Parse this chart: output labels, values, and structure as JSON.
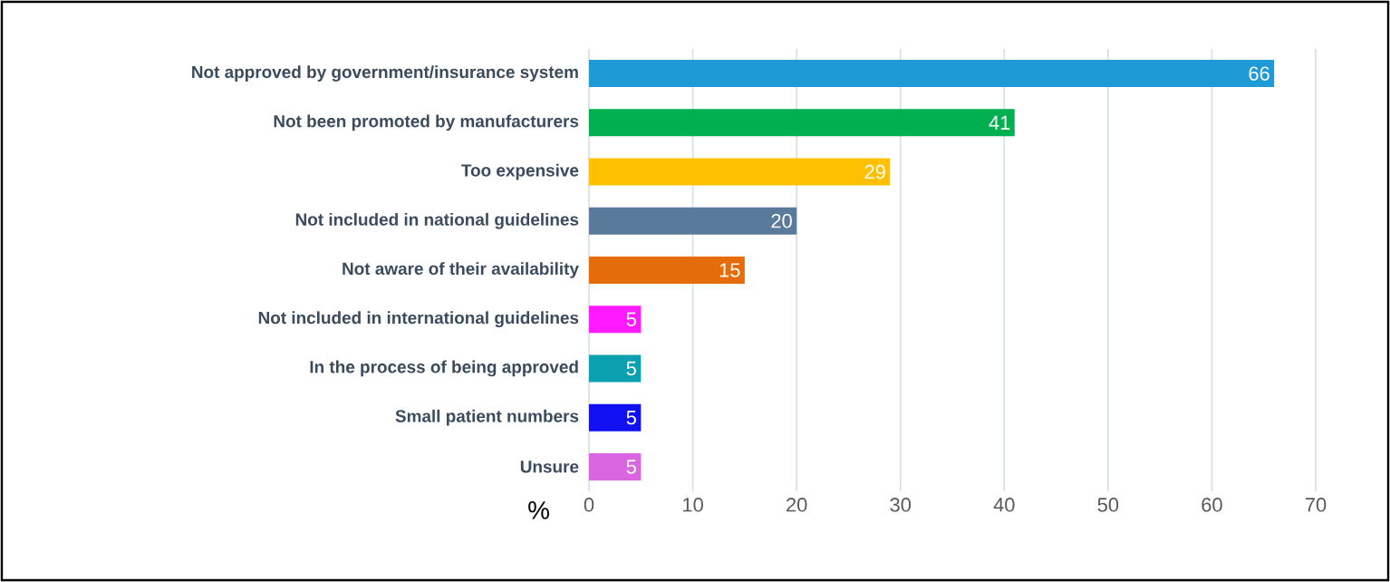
{
  "chart_data": {
    "type": "bar",
    "orientation": "horizontal",
    "xlabel": "%",
    "categories": [
      "Not approved by government/insurance system",
      "Not been promoted by manufacturers",
      "Too expensive",
      "Not included in national guidelines",
      "Not aware of their availability",
      "Not included in international guidelines",
      "In the process of being approved",
      "Small patient numbers",
      "Unsure"
    ],
    "values": [
      66,
      41,
      29,
      20,
      15,
      5,
      5,
      5,
      5
    ],
    "colors": [
      "#1e9ad6",
      "#00b050",
      "#ffc000",
      "#5a7a9c",
      "#e46c0a",
      "#ff1aff",
      "#0aa0b0",
      "#1010f0",
      "#d966e0"
    ],
    "xlim": [
      0,
      70
    ],
    "xticks": [
      0,
      10,
      20,
      30,
      40,
      50,
      60,
      70
    ],
    "grid": "x",
    "data_labels": true
  }
}
